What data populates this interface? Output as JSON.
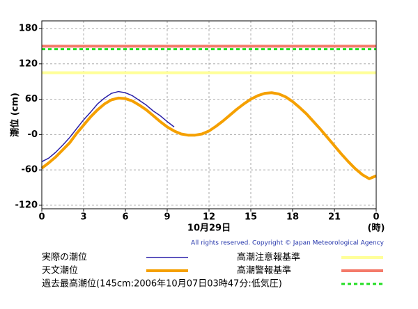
{
  "chart_data": {
    "type": "line",
    "y_label": "潮位 (cm)",
    "x_label": "10月29日",
    "x_unit": "(時)",
    "copyright": "All rights reserved. Copyright © Japan Meteorological Agency",
    "x": [
      0,
      0.5,
      1,
      1.5,
      2,
      2.5,
      3,
      3.5,
      4,
      4.5,
      5,
      5.5,
      6,
      6.5,
      7,
      7.5,
      8,
      8.5,
      9,
      9.5,
      10,
      10.5,
      11,
      11.5,
      12,
      12.5,
      13,
      13.5,
      14,
      14.5,
      15,
      15.5,
      16,
      16.5,
      17,
      17.5,
      18,
      18.5,
      19,
      19.5,
      20,
      20.5,
      21,
      21.5,
      22,
      22.5,
      23,
      23.5,
      24
    ],
    "xlim": [
      0,
      24
    ],
    "xticks": [
      0,
      3,
      6,
      9,
      12,
      15,
      18,
      21,
      {
        "value": 24,
        "label": "0"
      }
    ],
    "ylim": [
      -126,
      193
    ],
    "yticks": [
      {
        "value": -120,
        "label": "-120"
      },
      -60,
      {
        "value": 0,
        "label": "-0"
      },
      60,
      120,
      180
    ],
    "grid": true,
    "series": [
      {
        "name": "実際の潮位",
        "color": "#2a1fa8",
        "values": [
          -46,
          -40,
          -30,
          -18,
          -5,
          10,
          25,
          38,
          52,
          62,
          70,
          73,
          71,
          66,
          58,
          50,
          40,
          32,
          22,
          13,
          null,
          null,
          null,
          null,
          null,
          null,
          null,
          null,
          null,
          null,
          null,
          null,
          null,
          null,
          null,
          null,
          null,
          null,
          null,
          null,
          null,
          null,
          null,
          null,
          null,
          null,
          null,
          null,
          null
        ]
      },
      {
        "name": "天文潮位",
        "color": "#f5a000",
        "values": [
          -57,
          -48,
          -38,
          -26,
          -14,
          2,
          16,
          30,
          42,
          52,
          59,
          62,
          61,
          57,
          50,
          42,
          32,
          22,
          13,
          6,
          1,
          -1,
          -1,
          1,
          6,
          14,
          23,
          33,
          43,
          52,
          60,
          66,
          70,
          71,
          69,
          64,
          56,
          46,
          35,
          22,
          9,
          -5,
          -19,
          -33,
          -46,
          -58,
          -68,
          -75,
          -70
        ]
      }
    ],
    "reference_lines": [
      {
        "name": "高潮注意報基準",
        "value": 105,
        "color": "#ffff99",
        "dashed": false
      },
      {
        "name": "高潮警報基準",
        "value": 150,
        "color": "#f47a6a",
        "dashed": false
      },
      {
        "name": "過去最高潮位(145cm:2006年10月07日03時47分:低気圧)",
        "value": 145,
        "color": "#22dd22",
        "dashed": true
      }
    ]
  }
}
